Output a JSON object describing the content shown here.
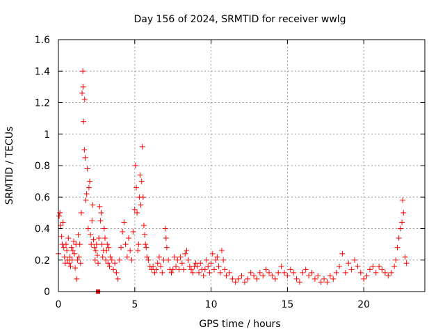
{
  "chart_data": {
    "type": "scatter",
    "title": "Day 156 of 2024, SRMTID for receiver wwlg",
    "xlabel": "GPS time / hours",
    "ylabel": "SRMTID / TECUs",
    "xlim": [
      0,
      24
    ],
    "ylim": [
      0,
      1.6
    ],
    "x_ticks": [
      0,
      5,
      10,
      15,
      20
    ],
    "x_tick_labels": [
      "0",
      "5",
      "10",
      "15",
      "20"
    ],
    "y_ticks": [
      0,
      0.2,
      0.4,
      0.6,
      0.8,
      1,
      1.2,
      1.4,
      1.6
    ],
    "y_tick_labels": [
      "0",
      "0.2",
      "0.4",
      "0.6",
      "0.8",
      "1",
      "1.2",
      "1.4",
      "1.6"
    ],
    "grid": true,
    "series": [
      {
        "name": "SRMTID",
        "color": "#ff0000",
        "marker": "plus",
        "points": [
          [
            0.0,
            0.24
          ],
          [
            0.05,
            0.48
          ],
          [
            0.1,
            0.5
          ],
          [
            0.15,
            0.42
          ],
          [
            0.2,
            0.35
          ],
          [
            0.25,
            0.3
          ],
          [
            0.3,
            0.44
          ],
          [
            0.35,
            0.28
          ],
          [
            0.4,
            0.22
          ],
          [
            0.45,
            0.18
          ],
          [
            0.5,
            0.3
          ],
          [
            0.55,
            0.26
          ],
          [
            0.6,
            0.2
          ],
          [
            0.65,
            0.34
          ],
          [
            0.7,
            0.18
          ],
          [
            0.75,
            0.22
          ],
          [
            0.8,
            0.16
          ],
          [
            0.85,
            0.28
          ],
          [
            0.9,
            0.2
          ],
          [
            0.95,
            0.26
          ],
          [
            1.0,
            0.32
          ],
          [
            1.05,
            0.24
          ],
          [
            1.1,
            0.15
          ],
          [
            1.15,
            0.3
          ],
          [
            1.2,
            0.08
          ],
          [
            1.25,
            0.2
          ],
          [
            1.3,
            0.36
          ],
          [
            1.35,
            0.22
          ],
          [
            1.4,
            0.3
          ],
          [
            1.45,
            0.18
          ],
          [
            1.5,
            0.5
          ],
          [
            1.55,
            1.26
          ],
          [
            1.6,
            1.4
          ],
          [
            1.62,
            1.3
          ],
          [
            1.65,
            1.08
          ],
          [
            1.7,
            0.9
          ],
          [
            1.72,
            1.22
          ],
          [
            1.75,
            0.85
          ],
          [
            1.8,
            0.58
          ],
          [
            1.85,
            0.62
          ],
          [
            1.9,
            0.78
          ],
          [
            1.95,
            0.4
          ],
          [
            2.0,
            0.66
          ],
          [
            2.05,
            0.7
          ],
          [
            2.1,
            0.36
          ],
          [
            2.15,
            0.3
          ],
          [
            2.2,
            0.45
          ],
          [
            2.25,
            0.55
          ],
          [
            2.3,
            0.33
          ],
          [
            2.35,
            0.28
          ],
          [
            2.4,
            0.2
          ],
          [
            2.45,
            0.26
          ],
          [
            2.5,
            0.3
          ],
          [
            2.55,
            0.23
          ],
          [
            2.6,
            0.18
          ],
          [
            2.65,
            0.34
          ],
          [
            2.7,
            0.54
          ],
          [
            2.75,
            0.45
          ],
          [
            2.8,
            0.5
          ],
          [
            2.85,
            0.3
          ],
          [
            2.9,
            0.22
          ],
          [
            2.95,
            0.26
          ],
          [
            3.0,
            0.4
          ],
          [
            3.05,
            0.34
          ],
          [
            3.1,
            0.2
          ],
          [
            3.15,
            0.26
          ],
          [
            3.2,
            0.3
          ],
          [
            3.25,
            0.18
          ],
          [
            3.3,
            0.28
          ],
          [
            3.35,
            0.16
          ],
          [
            3.4,
            0.22
          ],
          [
            3.5,
            0.2
          ],
          [
            3.6,
            0.14
          ],
          [
            3.7,
            0.18
          ],
          [
            3.8,
            0.12
          ],
          [
            3.9,
            0.08
          ],
          [
            4.0,
            0.2
          ],
          [
            4.1,
            0.28
          ],
          [
            4.2,
            0.38
          ],
          [
            4.3,
            0.44
          ],
          [
            4.4,
            0.3
          ],
          [
            4.5,
            0.22
          ],
          [
            4.6,
            0.34
          ],
          [
            4.7,
            0.26
          ],
          [
            4.8,
            0.2
          ],
          [
            4.9,
            0.38
          ],
          [
            5.0,
            0.52
          ],
          [
            5.05,
            0.8
          ],
          [
            5.1,
            0.66
          ],
          [
            5.15,
            0.5
          ],
          [
            5.2,
            0.26
          ],
          [
            5.25,
            0.3
          ],
          [
            5.3,
            0.6
          ],
          [
            5.35,
            0.74
          ],
          [
            5.4,
            0.55
          ],
          [
            5.45,
            0.7
          ],
          [
            5.5,
            0.92
          ],
          [
            5.55,
            0.6
          ],
          [
            5.6,
            0.42
          ],
          [
            5.65,
            0.36
          ],
          [
            5.7,
            0.3
          ],
          [
            5.75,
            0.28
          ],
          [
            5.8,
            0.22
          ],
          [
            5.9,
            0.2
          ],
          [
            6.0,
            0.16
          ],
          [
            6.1,
            0.14
          ],
          [
            6.2,
            0.16
          ],
          [
            6.3,
            0.12
          ],
          [
            6.4,
            0.14
          ],
          [
            6.5,
            0.18
          ],
          [
            6.6,
            0.22
          ],
          [
            6.7,
            0.16
          ],
          [
            6.8,
            0.12
          ],
          [
            6.9,
            0.2
          ],
          [
            7.0,
            0.4
          ],
          [
            7.05,
            0.34
          ],
          [
            7.1,
            0.28
          ],
          [
            7.2,
            0.2
          ],
          [
            7.3,
            0.14
          ],
          [
            7.4,
            0.12
          ],
          [
            7.5,
            0.14
          ],
          [
            7.6,
            0.22
          ],
          [
            7.7,
            0.16
          ],
          [
            7.8,
            0.2
          ],
          [
            7.9,
            0.14
          ],
          [
            8.0,
            0.22
          ],
          [
            8.1,
            0.18
          ],
          [
            8.2,
            0.14
          ],
          [
            8.3,
            0.24
          ],
          [
            8.4,
            0.26
          ],
          [
            8.5,
            0.2
          ],
          [
            8.6,
            0.16
          ],
          [
            8.7,
            0.14
          ],
          [
            8.8,
            0.12
          ],
          [
            8.9,
            0.16
          ],
          [
            9.0,
            0.18
          ],
          [
            9.1,
            0.16
          ],
          [
            9.2,
            0.12
          ],
          [
            9.3,
            0.18
          ],
          [
            9.4,
            0.14
          ],
          [
            9.5,
            0.1
          ],
          [
            9.6,
            0.14
          ],
          [
            9.7,
            0.2
          ],
          [
            9.8,
            0.16
          ],
          [
            9.9,
            0.12
          ],
          [
            10.0,
            0.18
          ],
          [
            10.1,
            0.24
          ],
          [
            10.2,
            0.14
          ],
          [
            10.3,
            0.2
          ],
          [
            10.4,
            0.22
          ],
          [
            10.5,
            0.16
          ],
          [
            10.6,
            0.12
          ],
          [
            10.7,
            0.26
          ],
          [
            10.8,
            0.2
          ],
          [
            10.9,
            0.14
          ],
          [
            11.0,
            0.1
          ],
          [
            11.2,
            0.12
          ],
          [
            11.4,
            0.08
          ],
          [
            11.6,
            0.06
          ],
          [
            11.8,
            0.08
          ],
          [
            12.0,
            0.1
          ],
          [
            12.2,
            0.06
          ],
          [
            12.4,
            0.08
          ],
          [
            12.6,
            0.12
          ],
          [
            12.8,
            0.1
          ],
          [
            13.0,
            0.08
          ],
          [
            13.2,
            0.12
          ],
          [
            13.4,
            0.1
          ],
          [
            13.6,
            0.14
          ],
          [
            13.8,
            0.12
          ],
          [
            14.0,
            0.1
          ],
          [
            14.2,
            0.08
          ],
          [
            14.4,
            0.12
          ],
          [
            14.6,
            0.16
          ],
          [
            14.8,
            0.12
          ],
          [
            15.0,
            0.1
          ],
          [
            15.2,
            0.14
          ],
          [
            15.4,
            0.12
          ],
          [
            15.6,
            0.08
          ],
          [
            15.8,
            0.06
          ],
          [
            16.0,
            0.12
          ],
          [
            16.2,
            0.14
          ],
          [
            16.4,
            0.1
          ],
          [
            16.6,
            0.12
          ],
          [
            16.8,
            0.08
          ],
          [
            17.0,
            0.1
          ],
          [
            17.2,
            0.06
          ],
          [
            17.4,
            0.08
          ],
          [
            17.6,
            0.06
          ],
          [
            17.8,
            0.1
          ],
          [
            18.0,
            0.08
          ],
          [
            18.2,
            0.12
          ],
          [
            18.4,
            0.16
          ],
          [
            18.6,
            0.24
          ],
          [
            18.8,
            0.12
          ],
          [
            19.0,
            0.18
          ],
          [
            19.2,
            0.14
          ],
          [
            19.4,
            0.2
          ],
          [
            19.6,
            0.16
          ],
          [
            19.8,
            0.12
          ],
          [
            20.0,
            0.08
          ],
          [
            20.2,
            0.1
          ],
          [
            20.4,
            0.14
          ],
          [
            20.6,
            0.16
          ],
          [
            20.8,
            0.12
          ],
          [
            21.0,
            0.16
          ],
          [
            21.2,
            0.14
          ],
          [
            21.4,
            0.12
          ],
          [
            21.6,
            0.1
          ],
          [
            21.8,
            0.12
          ],
          [
            22.0,
            0.16
          ],
          [
            22.1,
            0.2
          ],
          [
            22.2,
            0.28
          ],
          [
            22.3,
            0.34
          ],
          [
            22.4,
            0.4
          ],
          [
            22.5,
            0.44
          ],
          [
            22.55,
            0.58
          ],
          [
            22.6,
            0.5
          ],
          [
            22.7,
            0.22
          ],
          [
            22.8,
            0.18
          ]
        ]
      }
    ],
    "extra_marker": {
      "x": 2.6,
      "y": 0,
      "shape": "square",
      "color": "#cc0000"
    }
  }
}
